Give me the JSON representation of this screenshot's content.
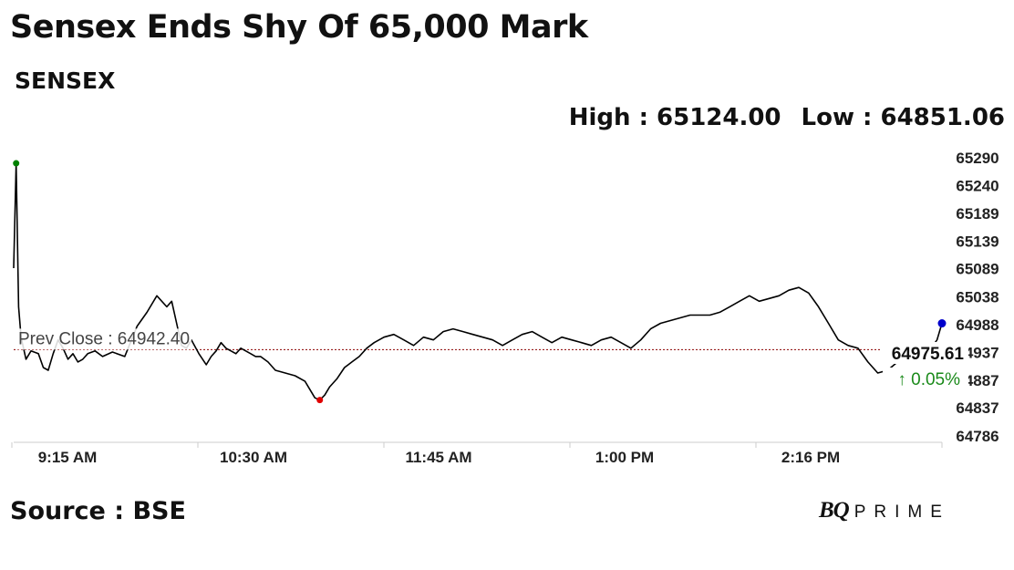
{
  "header": {
    "title": "Sensex Ends Shy Of 65,000 Mark",
    "subtitle": "SENSEX",
    "high_label": "High : 65124.00",
    "low_label": "Low : 64851.06"
  },
  "footer": {
    "source": "Source : BSE",
    "brand_bq": "BQ",
    "brand_prime": "PRIME"
  },
  "colors": {
    "line": "#000000",
    "prev_close_line": "#8b0000",
    "high_marker": "#008000",
    "low_marker": "#e00000",
    "last_marker": "#0000cc",
    "change_up": "#1a8a1a"
  },
  "chart_data": {
    "type": "line",
    "title": "Sensex Ends Shy Of 65,000 Mark",
    "subtitle": "SENSEX",
    "x_tick_labels": [
      "9:15 AM",
      "10:30 AM",
      "11:45 AM",
      "1:00 PM",
      "2:16 PM"
    ],
    "y_ticks": [
      65290,
      65240,
      65189,
      65139,
      65089,
      65038,
      64988,
      64937,
      64887,
      64837,
      64786
    ],
    "ylim": [
      64786,
      65290
    ],
    "prev_close": 64942.4,
    "prev_close_label": "Prev Close : 64942.40",
    "last_value": 64975.61,
    "last_value_label": "64975.61",
    "change_label": "↑ 0.05%",
    "high": 65124.0,
    "low": 64851.06,
    "xlabel": "",
    "ylabel": "",
    "grid": false,
    "series": [
      {
        "x": [
          0,
          1,
          2,
          3,
          5,
          7,
          10,
          12,
          14,
          16,
          18,
          20,
          22,
          24,
          26,
          28,
          30,
          33,
          36,
          40,
          45,
          50,
          54,
          58,
          62,
          64,
          66,
          68,
          70,
          72,
          75,
          78,
          80,
          82,
          84,
          86,
          88,
          90,
          92,
          94,
          96,
          98,
          100,
          103,
          106,
          110,
          114,
          118,
          120,
          122,
          124,
          126,
          128,
          131,
          134,
          137,
          140,
          143,
          146,
          150,
          154,
          158,
          162,
          166,
          170,
          174,
          178,
          182,
          186,
          190,
          194,
          198,
          202,
          206,
          210,
          214,
          218,
          222,
          226,
          230,
          234,
          238,
          242,
          246,
          250,
          254,
          258,
          262,
          266,
          270,
          274,
          278,
          282,
          286,
          290,
          294,
          298,
          302,
          306,
          310,
          314,
          318,
          322,
          326,
          330,
          334,
          338,
          342,
          346,
          350,
          354,
          358,
          362,
          366,
          370,
          374,
          376
        ],
        "y": [
          65090,
          65280,
          65020,
          64965,
          64925,
          64940,
          64935,
          64910,
          64905,
          64935,
          64960,
          64945,
          64925,
          64935,
          64920,
          64925,
          64935,
          64940,
          64930,
          64938,
          64930,
          64985,
          65010,
          65040,
          65020,
          65030,
          64990,
          64950,
          64945,
          64960,
          64935,
          64915,
          64930,
          64940,
          64955,
          64945,
          64940,
          64935,
          64945,
          64940,
          64935,
          64930,
          64930,
          64920,
          64905,
          64900,
          64895,
          64885,
          64870,
          64855,
          64851,
          64860,
          64875,
          64890,
          64910,
          64920,
          64930,
          64945,
          64955,
          64965,
          64970,
          64960,
          64950,
          64965,
          64960,
          64975,
          64980,
          64975,
          64970,
          64965,
          64960,
          64950,
          64960,
          64970,
          64975,
          64965,
          64955,
          64965,
          64960,
          64955,
          64950,
          64960,
          64965,
          64955,
          64945,
          64960,
          64980,
          64990,
          64995,
          65000,
          65005,
          65005,
          65005,
          65010,
          65020,
          65030,
          65040,
          65030,
          65035,
          65040,
          65050,
          65055,
          65045,
          65020,
          64990,
          64960,
          64950,
          64945,
          64920,
          64900,
          64905,
          64920,
          64925,
          64920,
          64935,
          64960,
          64990
        ]
      }
    ]
  }
}
